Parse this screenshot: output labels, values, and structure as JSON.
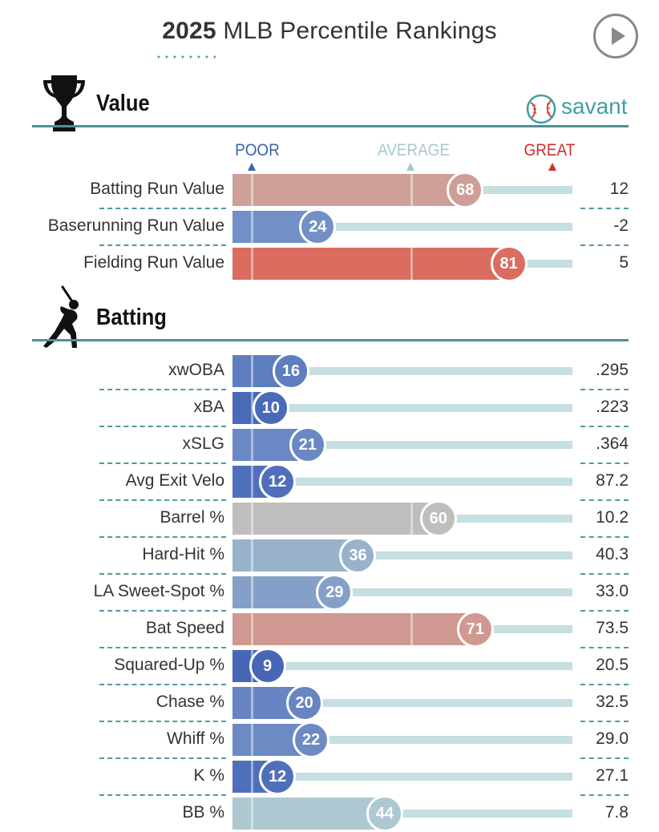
{
  "header": {
    "title_year": "2025",
    "title_rest": "MLB Percentile Rankings"
  },
  "scale": {
    "poor": "POOR",
    "average": "AVERAGE",
    "great": "GREAT",
    "colors": {
      "poor": "#3b64b5",
      "average": "#a9c8cc",
      "great": "#d22d2d"
    }
  },
  "logo": {
    "text": "savant"
  },
  "chart_data": {
    "type": "bar",
    "xlim": [
      0,
      100
    ],
    "sections": [
      {
        "title": "Value",
        "icon": "trophy-icon",
        "rows": [
          {
            "label": "Batting Run Value",
            "percentile": 68,
            "value": "12",
            "color": "#cd9f97"
          },
          {
            "label": "Baserunning Run Value",
            "percentile": 24,
            "value": "-2",
            "color": "#7290c6"
          },
          {
            "label": "Fielding Run Value",
            "percentile": 81,
            "value": "5",
            "color": "#db6c60"
          }
        ]
      },
      {
        "title": "Batting",
        "icon": "batter-icon",
        "rows": [
          {
            "label": "xwOBA",
            "percentile": 16,
            "value": ".295",
            "color": "#5e7ebf"
          },
          {
            "label": "xBA",
            "percentile": 10,
            "value": ".223",
            "color": "#4a6ab7"
          },
          {
            "label": "xSLG",
            "percentile": 21,
            "value": ".364",
            "color": "#6a88c3"
          },
          {
            "label": "Avg Exit Velo",
            "percentile": 12,
            "value": "87.2",
            "color": "#506fba"
          },
          {
            "label": "Barrel %",
            "percentile": 60,
            "value": "10.2",
            "color": "#c0bebc"
          },
          {
            "label": "Hard-Hit %",
            "percentile": 36,
            "value": "40.3",
            "color": "#98b2cc"
          },
          {
            "label": "LA Sweet-Spot %",
            "percentile": 29,
            "value": "33.0",
            "color": "#85a0c8"
          },
          {
            "label": "Bat Speed",
            "percentile": 71,
            "value": "73.5",
            "color": "#cf9890"
          },
          {
            "label": "Squared-Up %",
            "percentile": 9,
            "value": "20.5",
            "color": "#4866b5"
          },
          {
            "label": "Chase %",
            "percentile": 20,
            "value": "32.5",
            "color": "#6884c2"
          },
          {
            "label": "Whiff %",
            "percentile": 22,
            "value": "29.0",
            "color": "#6c8ac4"
          },
          {
            "label": "K %",
            "percentile": 12,
            "value": "27.1",
            "color": "#506fba"
          },
          {
            "label": "BB %",
            "percentile": 44,
            "value": "7.8",
            "color": "#adc8d0"
          }
        ]
      }
    ]
  }
}
